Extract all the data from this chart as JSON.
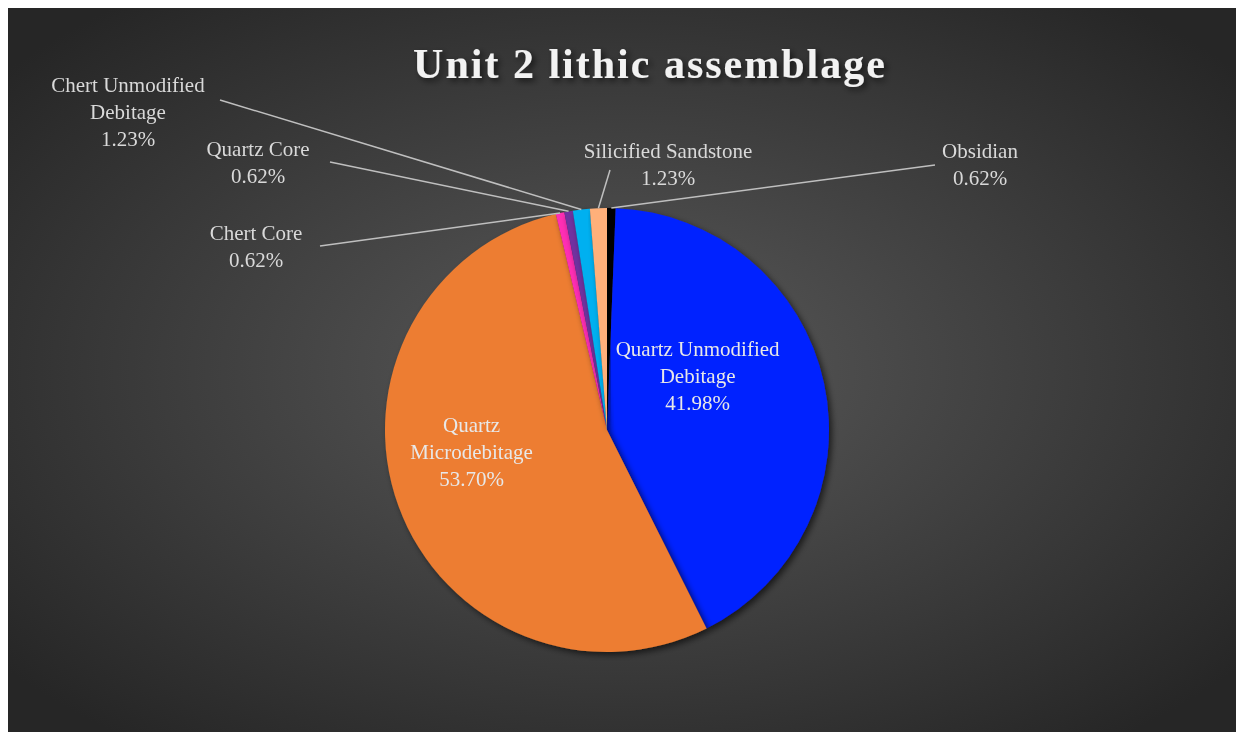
{
  "chart_data": {
    "type": "pie",
    "title": "Unit 2 lithic assemblage",
    "categories": [
      "Obsidian",
      "Quartz Unmodified Debitage",
      "Quartz Microdebitage",
      "Chert Core",
      "Quartz Core",
      "Chert Unmodified Debitage",
      "Silicified Sandstone"
    ],
    "values": [
      0.62,
      41.98,
      53.7,
      0.62,
      0.62,
      1.23,
      1.23
    ],
    "value_labels": [
      "0.62%",
      "41.98%",
      "53.70%",
      "0.62%",
      "0.62%",
      "1.23%",
      "1.23%"
    ],
    "colors": [
      "#000000",
      "#0020ff",
      "#ed7d31",
      "#ff2fb4",
      "#7030a0",
      "#00b0f0",
      "#ffb07a"
    ],
    "legend": false
  }
}
